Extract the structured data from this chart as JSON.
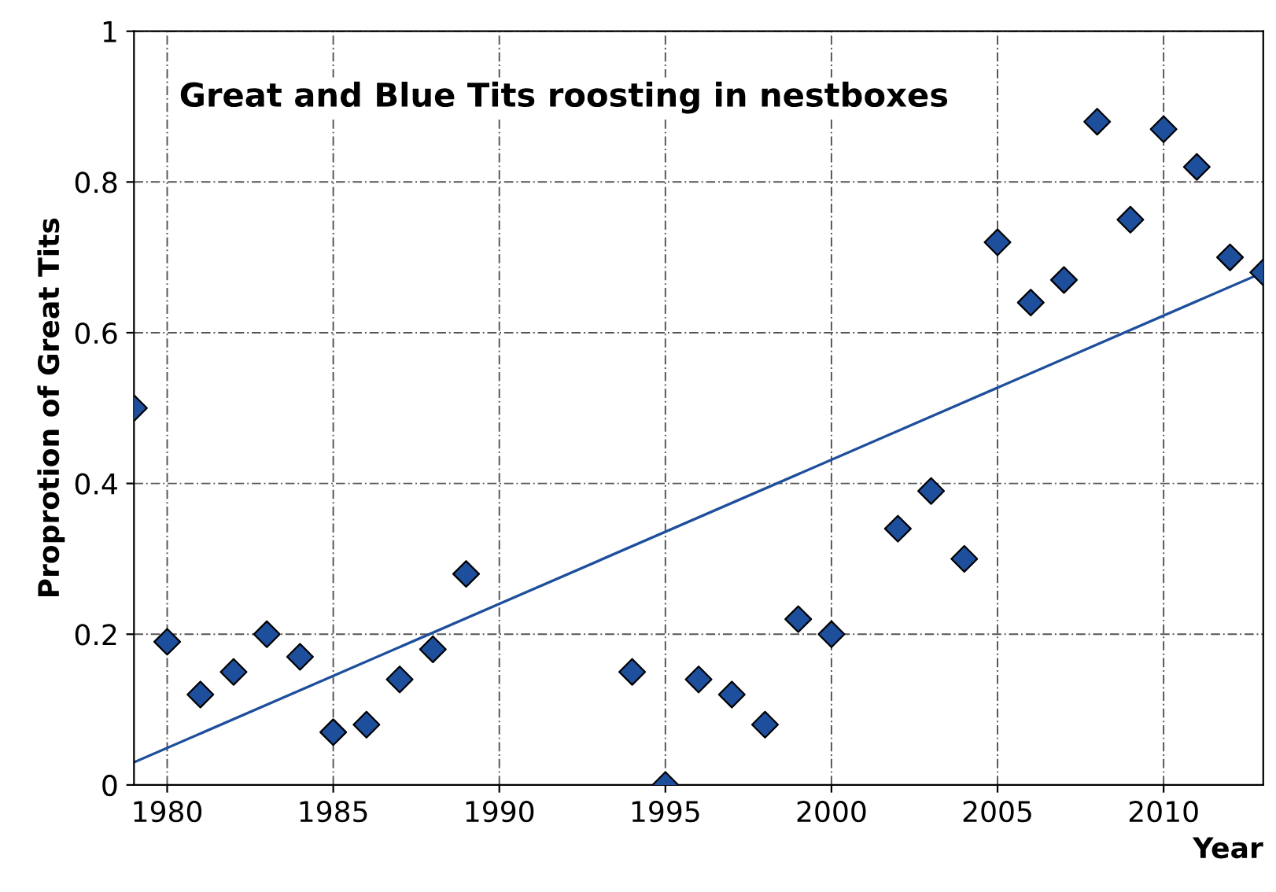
{
  "chart_data": {
    "type": "scatter",
    "title": "Great and Blue Tits roosting in nestboxes",
    "xlabel": "Year",
    "ylabel": "Proprotion of Great Tits",
    "x": [
      1979,
      1980,
      1981,
      1982,
      1983,
      1984,
      1985,
      1986,
      1987,
      1988,
      1989,
      1994,
      1995,
      1996,
      1997,
      1998,
      1999,
      2000,
      2002,
      2003,
      2004,
      2005,
      2006,
      2007,
      2008,
      2009,
      2010,
      2011,
      2012,
      2013
    ],
    "series": [
      {
        "color": "#1e4f9c",
        "marker": "diamond",
        "values": [
          0.5,
          0.19,
          0.12,
          0.15,
          0.2,
          0.17,
          0.07,
          0.08,
          0.14,
          0.18,
          0.28,
          0.15,
          0.0,
          0.14,
          0.12,
          0.08,
          0.22,
          0.2,
          0.34,
          0.39,
          0.3,
          0.72,
          0.64,
          0.67,
          0.88,
          0.75,
          0.87,
          0.82,
          0.7,
          0.68
        ]
      },
      {
        "type": "line",
        "color": "#1e4f9c",
        "marker": "none",
        "line_style": "solid",
        "x": [
          1979,
          2013
        ],
        "values": [
          0.03,
          0.68
        ]
      }
    ],
    "xlim": [
      1979,
      2013
    ],
    "xticks": [
      1980,
      1985,
      1990,
      1995,
      2000,
      2005,
      2010
    ],
    "ylim": [
      0,
      1
    ],
    "yticks": [
      0,
      0.2,
      0.4,
      0.6,
      0.8,
      1
    ],
    "grid": true,
    "legend": false
  }
}
